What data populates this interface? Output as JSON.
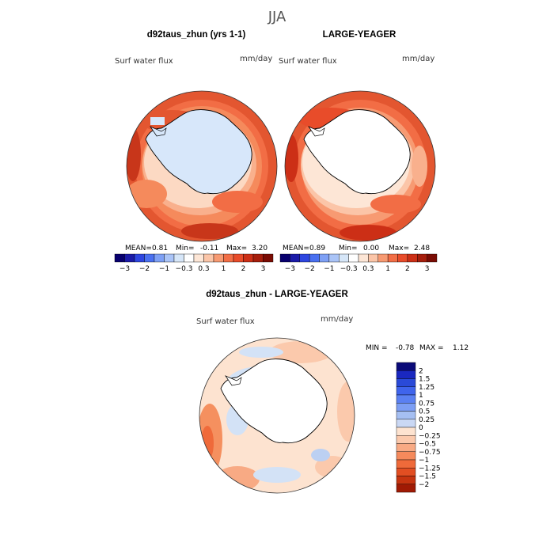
{
  "season_title": "JJA",
  "panels": [
    {
      "title": "d92taus_zhun (yrs 1-1)",
      "variable": "Surf water flux",
      "units": "mm/day",
      "stats": {
        "mean_label": "MEAN=",
        "mean": "0.81",
        "min_label": "Min=",
        "min": "-0.11",
        "max_label": "Max=",
        "max": "3.20"
      }
    },
    {
      "title": "LARGE-YEAGER",
      "variable": "Surf water flux",
      "units": "mm/day",
      "stats": {
        "mean_label": "MEAN=",
        "mean": "0.89",
        "min_label": "Min=",
        "min": "0.00",
        "max_label": "Max=",
        "max": "2.48"
      }
    },
    {
      "title": "d92taus_zhun - LARGE-YEAGER",
      "variable": "Surf water flux",
      "units": "mm/day",
      "stats": {
        "min_label": "MIN =",
        "min": "-0.78",
        "max_label": "MAX =",
        "max": "1.12"
      }
    }
  ],
  "abs_colorbar": {
    "colors": [
      "#08006e",
      "#1b1ba8",
      "#2e46e0",
      "#4a70f0",
      "#7ea0f5",
      "#aac4f7",
      "#d6e6f8",
      "#ffffff",
      "#fde6d6",
      "#fbc5a8",
      "#f79a72",
      "#f26e46",
      "#e84c2a",
      "#cc2f16",
      "#a61e0c",
      "#7a0c04"
    ],
    "tick_labels": [
      "-3",
      "-2",
      "-1",
      "-0.3",
      "0.3",
      "1",
      "2",
      "3"
    ]
  },
  "diff_colorbar": {
    "colors": [
      "#0a0a78",
      "#1a28c0",
      "#2a4ad8",
      "#3f64ec",
      "#5a80f2",
      "#7c9ef4",
      "#a5bff2",
      "#cad8f4",
      "#fde3d0",
      "#fbc9ac",
      "#f8aa84",
      "#f58a5c",
      "#ef6a3a",
      "#e24e22",
      "#c63410",
      "#a01a04"
    ],
    "labels": [
      "2",
      "1.5",
      "1.25",
      "1",
      "0.75",
      "0.5",
      "0.25",
      "0",
      "-0.25",
      "-0.5",
      "-0.75",
      "-1",
      "-1.25",
      "-1.5",
      "-2"
    ]
  },
  "legend": {
    "land_fill": "#ffffff",
    "coast_color": "#000000"
  }
}
